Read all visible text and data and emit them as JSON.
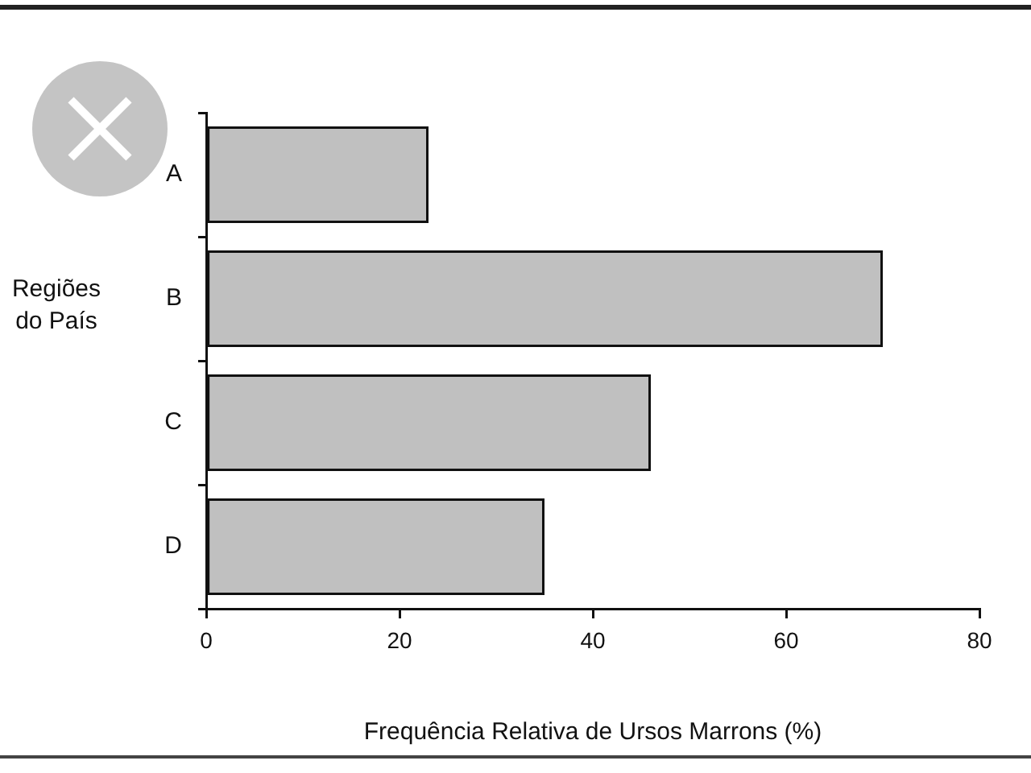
{
  "chart_data": {
    "type": "bar",
    "orientation": "horizontal",
    "categories": [
      "A",
      "B",
      "C",
      "D"
    ],
    "values": [
      23,
      70,
      46,
      35
    ],
    "color": "#c0c0c0",
    "xlabel": "Frequência Relativa de Ursos Marrons (%)",
    "ylabel": "Regiões do País",
    "xlim": [
      0,
      80
    ],
    "xticks": [
      0,
      20,
      40,
      60,
      80
    ]
  }
}
